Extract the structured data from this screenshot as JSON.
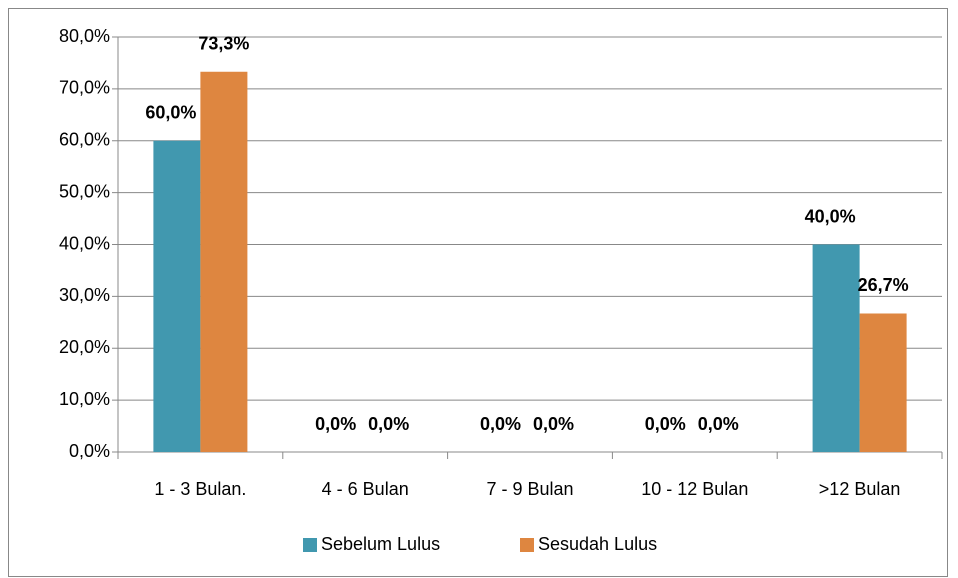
{
  "chart_data": {
    "type": "bar",
    "categories": [
      "1 - 3 Bulan.",
      "4 - 6 Bulan",
      "7 - 9 Bulan",
      "10 - 12 Bulan",
      ">12 Bulan"
    ],
    "series": [
      {
        "name": "Sebelum Lulus",
        "color": "#4198af",
        "values": [
          60,
          0,
          0,
          0,
          40
        ],
        "value_labels": [
          "60,0%",
          "0,0%",
          "0,0%",
          "0,0%",
          "40,0%"
        ]
      },
      {
        "name": "Sesudah Lulus",
        "color": "#de8640",
        "values": [
          73.3,
          0,
          0,
          0,
          26.7
        ],
        "value_labels": [
          "73,3%",
          "0,0%",
          "0,0%",
          "0,0%",
          "26,7%"
        ]
      }
    ],
    "ylim": [
      0,
      80
    ],
    "yticks": [
      {
        "value": 0,
        "label": "0,0%"
      },
      {
        "value": 10,
        "label": "10,0%"
      },
      {
        "value": 20,
        "label": "20,0%"
      },
      {
        "value": 30,
        "label": "30,0%"
      },
      {
        "value": 40,
        "label": "40,0%"
      },
      {
        "value": 50,
        "label": "50,0%"
      },
      {
        "value": 60,
        "label": "60,0%"
      },
      {
        "value": 70,
        "label": "70,0%"
      },
      {
        "value": 80,
        "label": "80,0%"
      }
    ],
    "grid": true,
    "legend": "bottom"
  }
}
